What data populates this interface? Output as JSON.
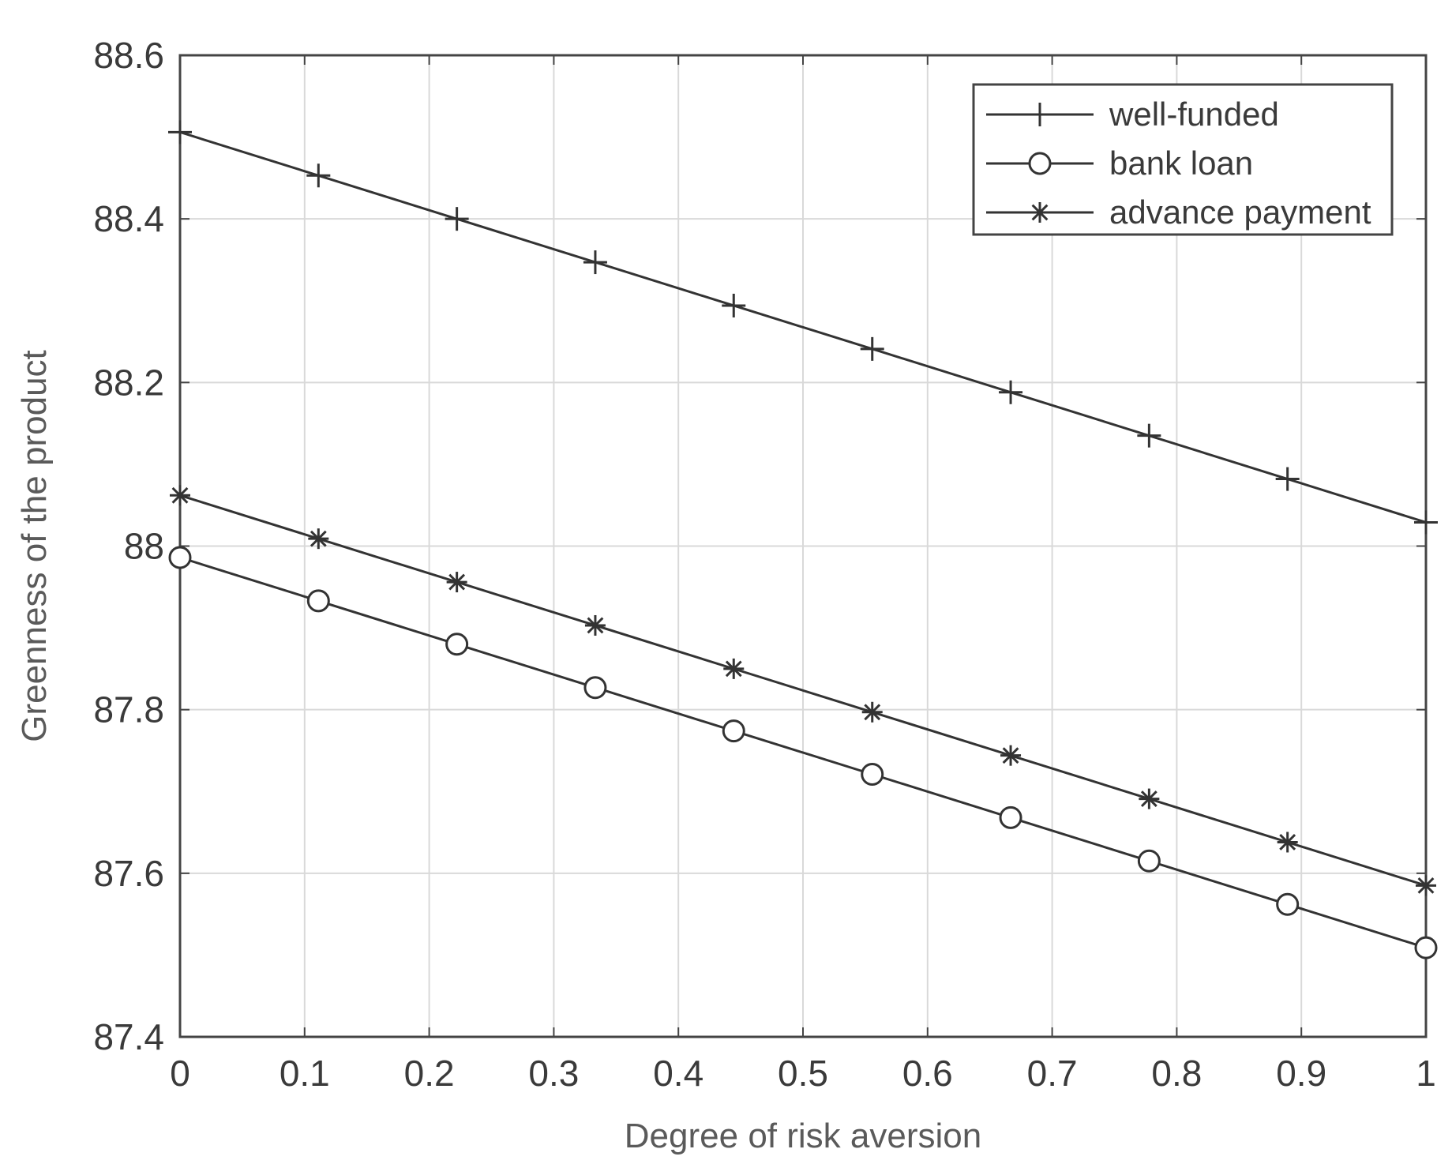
{
  "chart_data": {
    "type": "line",
    "title": "",
    "xlabel": "Degree of risk aversion",
    "ylabel": "Greenness of the product",
    "xlim": [
      0,
      1
    ],
    "ylim": [
      87.4,
      88.6
    ],
    "xticks": [
      0,
      0.1,
      0.2,
      0.3,
      0.4,
      0.5,
      0.6,
      0.7,
      0.8,
      0.9,
      1
    ],
    "xtick_labels": [
      "0",
      "0.1",
      "0.2",
      "0.3",
      "0.4",
      "0.5",
      "0.6",
      "0.7",
      "0.8",
      "0.9",
      "1"
    ],
    "yticks": [
      87.4,
      87.6,
      87.8,
      88,
      88.2,
      88.4,
      88.6
    ],
    "ytick_labels": [
      "87.4",
      "87.6",
      "87.8",
      "88",
      "88.2",
      "88.4",
      "88.6"
    ],
    "grid": true,
    "legend_position": "top-right",
    "x": [
      0,
      0.1111,
      0.2222,
      0.3333,
      0.4444,
      0.5556,
      0.6667,
      0.7778,
      0.8889,
      1
    ],
    "series": [
      {
        "name": "well-funded",
        "marker": "plus",
        "color": "#333333",
        "values": [
          88.506,
          88.453,
          88.4,
          88.347,
          88.294,
          88.241,
          88.188,
          88.135,
          88.082,
          88.029
        ]
      },
      {
        "name": "bank loan",
        "marker": "circle",
        "color": "#333333",
        "values": [
          87.986,
          87.933,
          87.88,
          87.827,
          87.774,
          87.721,
          87.668,
          87.615,
          87.562,
          87.509
        ]
      },
      {
        "name": "advance payment",
        "marker": "star",
        "color": "#333333",
        "values": [
          88.062,
          88.009,
          87.956,
          87.903,
          87.85,
          87.797,
          87.744,
          87.691,
          87.638,
          87.585
        ]
      }
    ]
  }
}
